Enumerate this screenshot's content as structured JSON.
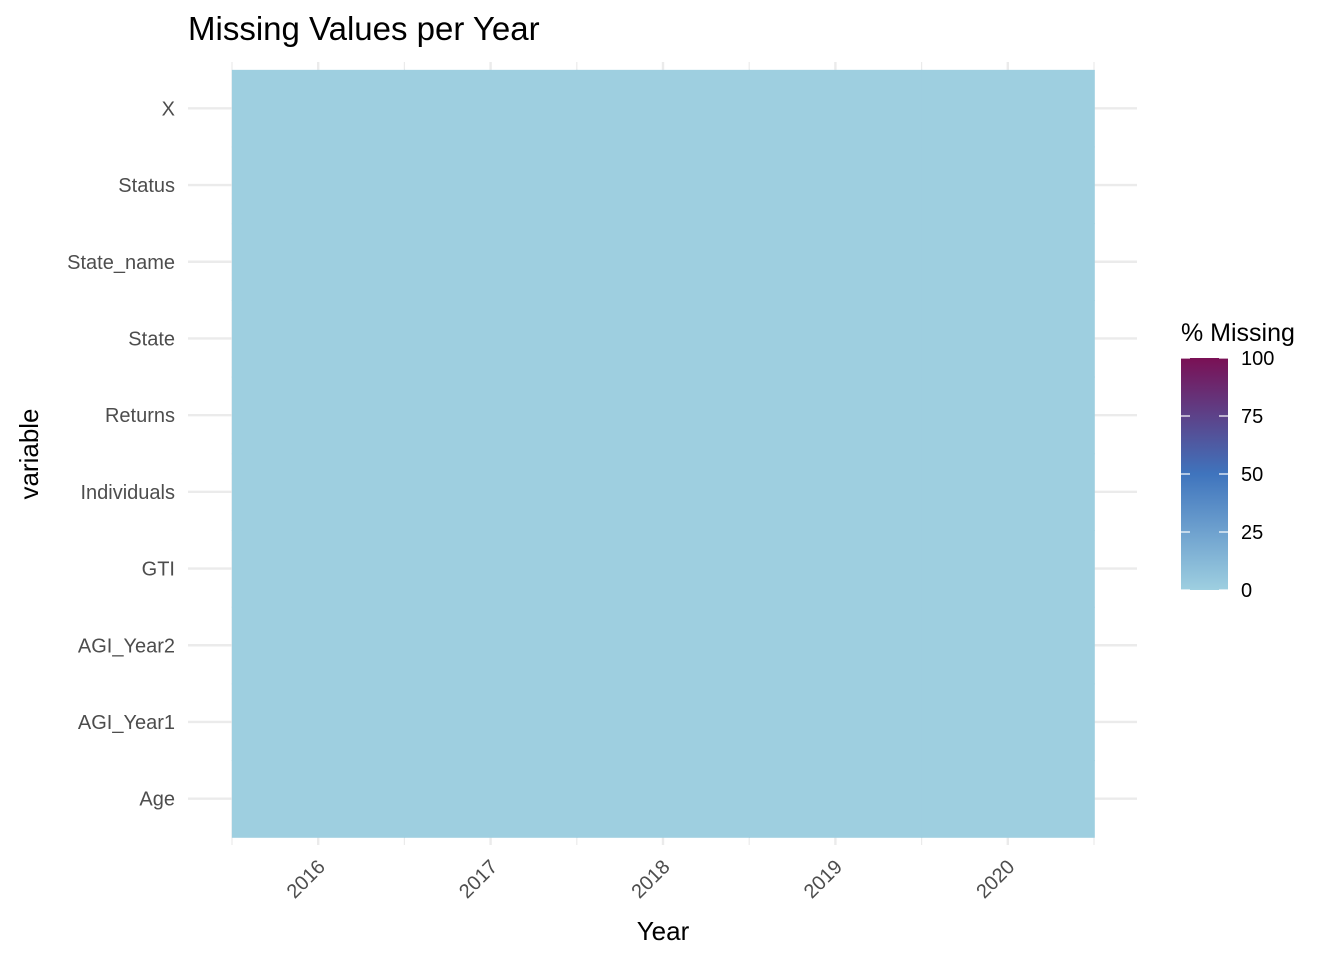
{
  "chart_data": {
    "type": "heatmap",
    "title": "Missing Values per Year",
    "xlabel": "Year",
    "ylabel": "variable",
    "x": [
      "2016",
      "2017",
      "2018",
      "2019",
      "2020"
    ],
    "y": [
      "Age",
      "AGI_Year1",
      "AGI_Year2",
      "GTI",
      "Individuals",
      "Returns",
      "State",
      "State_name",
      "Status",
      "X"
    ],
    "values": [
      [
        0,
        0,
        0,
        0,
        0
      ],
      [
        0,
        0,
        0,
        0,
        0
      ],
      [
        0,
        0,
        0,
        0,
        0
      ],
      [
        0,
        0,
        0,
        0,
        0
      ],
      [
        0,
        0,
        0,
        0,
        0
      ],
      [
        0,
        0,
        0,
        0,
        0
      ],
      [
        0,
        0,
        0,
        0,
        0
      ],
      [
        0,
        0,
        0,
        0,
        0
      ],
      [
        0,
        0,
        0,
        0,
        0
      ],
      [
        0,
        0,
        0,
        0,
        0
      ]
    ],
    "legend": {
      "title": "% Missing",
      "position": "right",
      "range": [
        0,
        100
      ],
      "breaks": [
        "0",
        "25",
        "50",
        "75",
        "100"
      ],
      "colors": [
        "#9ecfe0",
        "#3f74bd",
        "#7a1055"
      ]
    },
    "grid": true
  }
}
